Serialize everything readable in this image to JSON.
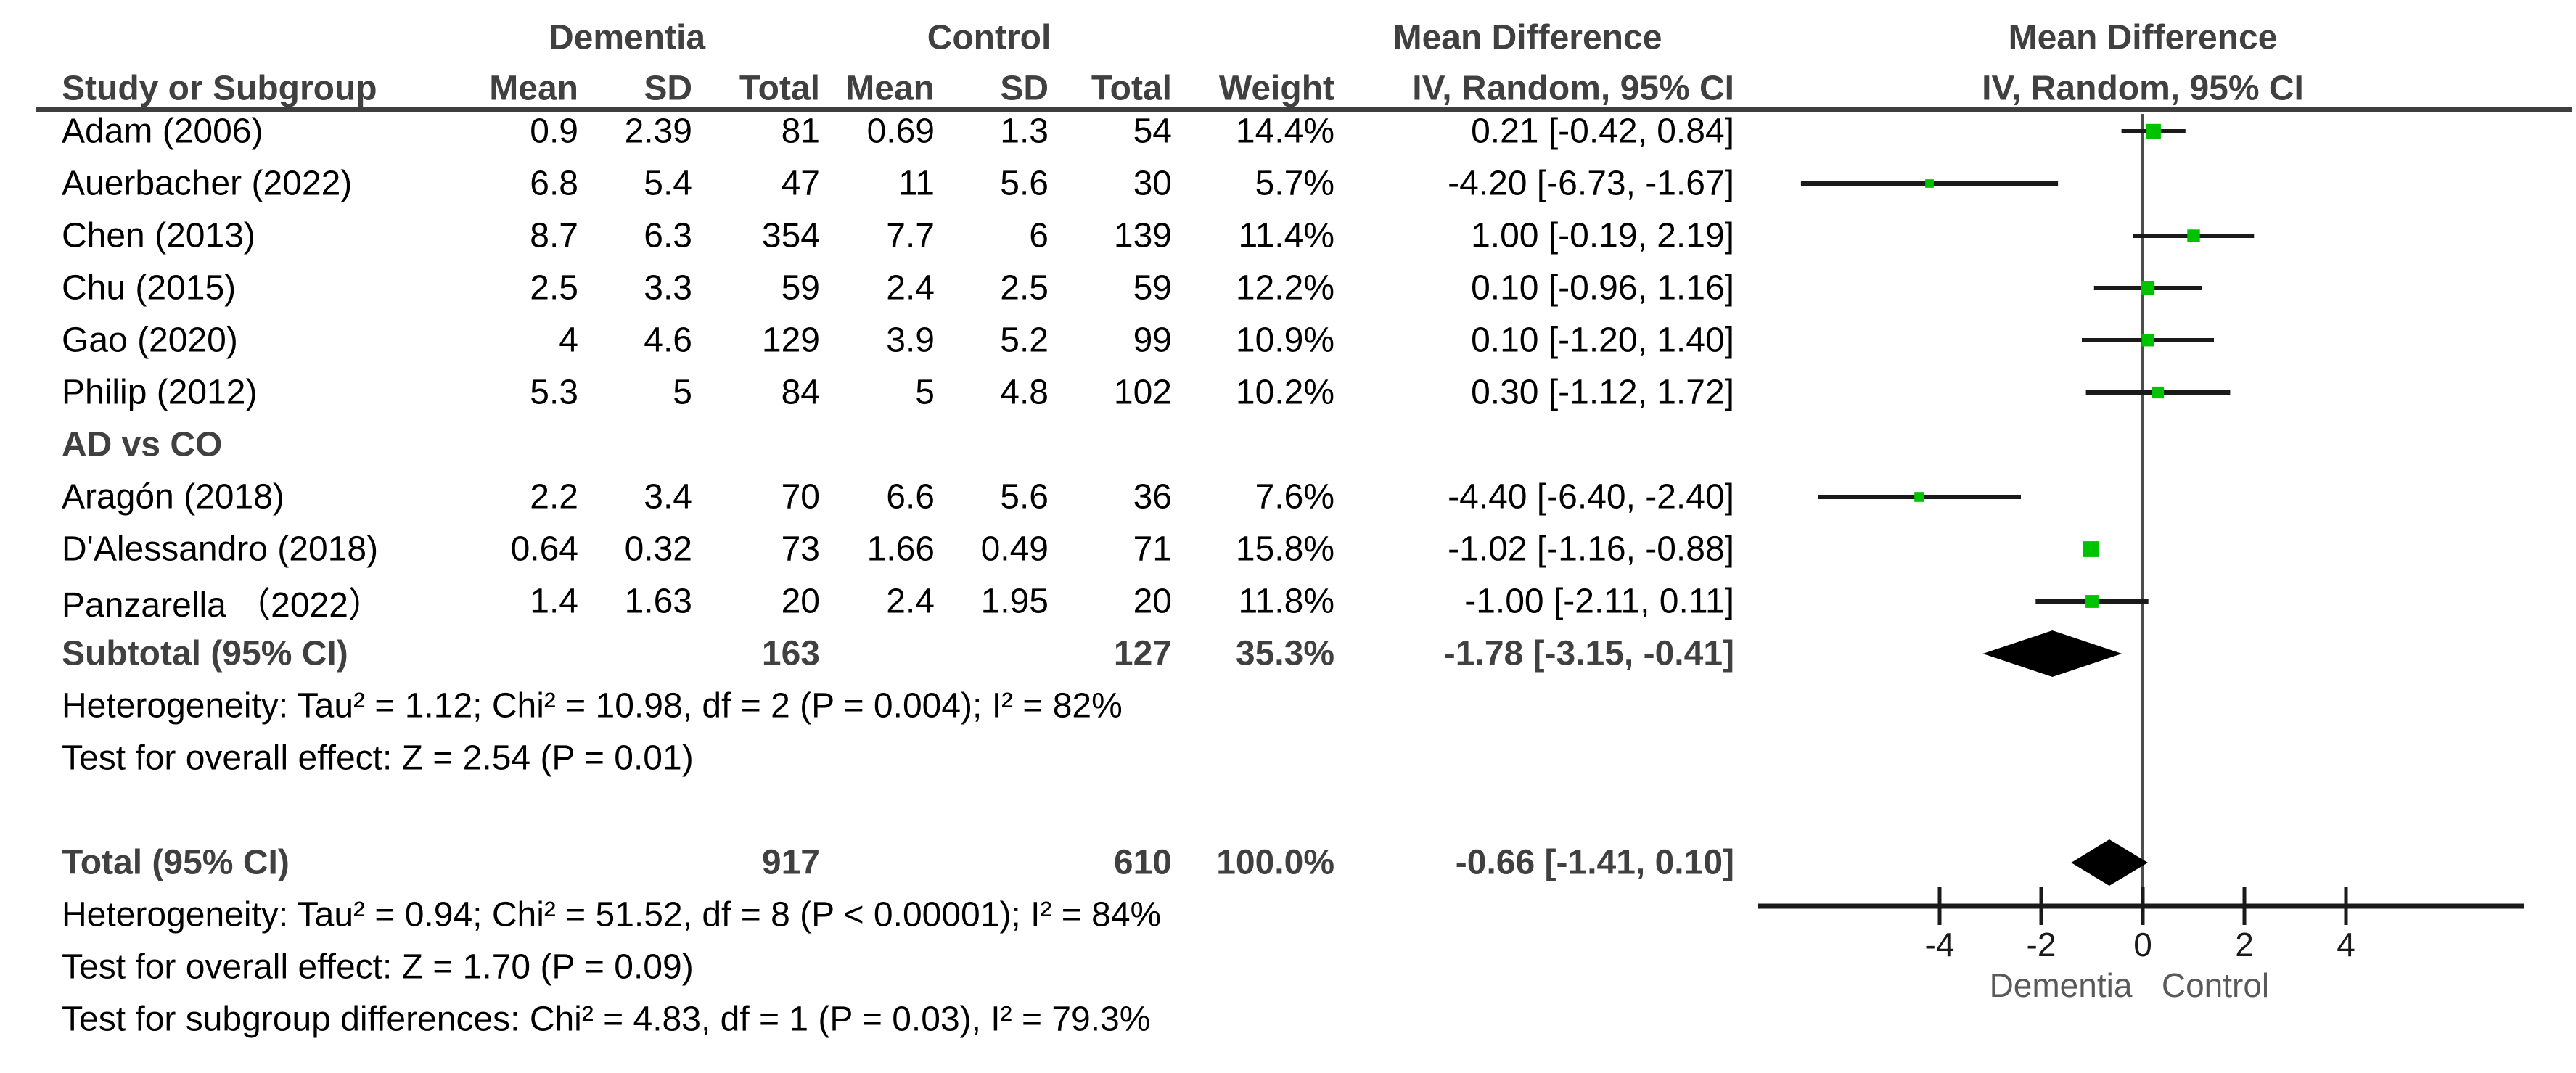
{
  "header": {
    "group_dementia": "Dementia",
    "group_control": "Control",
    "mean_difference_text_col": "Mean Difference",
    "mean_difference_plot_col": "Mean Difference",
    "study_or_subgroup": "Study or Subgroup",
    "mean": "Mean",
    "sd": "SD",
    "total": "Total",
    "weight": "Weight",
    "iv_random_text_col": "IV, Random, 95% CI",
    "iv_random_plot_col": "IV, Random, 95% CI"
  },
  "rows": [
    {
      "type": "study",
      "label": "Adam (2006)",
      "cells": [
        "0.9",
        "2.39",
        "81",
        "0.69",
        "1.3",
        "54",
        "14.4%",
        "0.21 [-0.42, 0.84]"
      ],
      "md": 0.21,
      "lo": -0.42,
      "hi": 0.84,
      "weight": 14.4
    },
    {
      "type": "study",
      "label": "Auerbacher (2022)",
      "cells": [
        "6.8",
        "5.4",
        "47",
        "11",
        "5.6",
        "30",
        "5.7%",
        "-4.20 [-6.73, -1.67]"
      ],
      "md": -4.2,
      "lo": -6.73,
      "hi": -1.67,
      "weight": 5.7
    },
    {
      "type": "study",
      "label": "Chen (2013)",
      "cells": [
        "8.7",
        "6.3",
        "354",
        "7.7",
        "6",
        "139",
        "11.4%",
        "1.00 [-0.19, 2.19]"
      ],
      "md": 1.0,
      "lo": -0.19,
      "hi": 2.19,
      "weight": 11.4
    },
    {
      "type": "study",
      "label": "Chu (2015)",
      "cells": [
        "2.5",
        "3.3",
        "59",
        "2.4",
        "2.5",
        "59",
        "12.2%",
        "0.10 [-0.96, 1.16]"
      ],
      "md": 0.1,
      "lo": -0.96,
      "hi": 1.16,
      "weight": 12.2
    },
    {
      "type": "study",
      "label": "Gao (2020)",
      "cells": [
        "4",
        "4.6",
        "129",
        "3.9",
        "5.2",
        "99",
        "10.9%",
        "0.10 [-1.20, 1.40]"
      ],
      "md": 0.1,
      "lo": -1.2,
      "hi": 1.4,
      "weight": 10.9
    },
    {
      "type": "study",
      "label": "Philip (2012)",
      "cells": [
        "5.3",
        "5",
        "84",
        "5",
        "4.8",
        "102",
        "10.2%",
        "0.30 [-1.12, 1.72]"
      ],
      "md": 0.3,
      "lo": -1.12,
      "hi": 1.72,
      "weight": 10.2
    },
    {
      "type": "label",
      "label": "AD vs CO"
    },
    {
      "type": "study",
      "label": "Aragón (2018)",
      "cells": [
        "2.2",
        "3.4",
        "70",
        "6.6",
        "5.6",
        "36",
        "7.6%",
        "-4.40 [-6.40, -2.40]"
      ],
      "md": -4.4,
      "lo": -6.4,
      "hi": -2.4,
      "weight": 7.6
    },
    {
      "type": "study",
      "label": "D'Alessandro (2018)",
      "cells": [
        "0.64",
        "0.32",
        "73",
        "1.66",
        "0.49",
        "71",
        "15.8%",
        "-1.02 [-1.16, -0.88]"
      ],
      "md": -1.02,
      "lo": -1.16,
      "hi": -0.88,
      "weight": 15.8
    },
    {
      "type": "study",
      "label": "Panzarella （2022）",
      "cells": [
        "1.4",
        "1.63",
        "20",
        "2.4",
        "1.95",
        "20",
        "11.8%",
        "-1.00 [-2.11, 0.11]"
      ],
      "md": -1.0,
      "lo": -2.11,
      "hi": 0.11,
      "weight": 11.8
    },
    {
      "type": "summary",
      "label": "Subtotal (95% CI)",
      "cells": [
        "",
        "",
        "163",
        "",
        "",
        "127",
        "35.3%",
        "-1.78 [-3.15, -0.41]"
      ],
      "md": -1.78,
      "lo": -3.15,
      "hi": -0.41
    },
    {
      "type": "note",
      "text": "Heterogeneity: Tau² = 1.12; Chi² = 10.98, df = 2 (P = 0.004); I² = 82%"
    },
    {
      "type": "note",
      "text": "Test for overall effect: Z = 2.54 (P = 0.01)"
    },
    {
      "type": "spacer"
    },
    {
      "type": "summary",
      "label": "Total (95% CI)",
      "cells": [
        "",
        "",
        "917",
        "",
        "",
        "610",
        "100.0%",
        "-0.66 [-1.41, 0.10]"
      ],
      "md": -0.66,
      "lo": -1.41,
      "hi": 0.1
    },
    {
      "type": "note",
      "text": "Heterogeneity: Tau² = 0.94; Chi² = 51.52, df = 8 (P < 0.00001); I² = 84%"
    },
    {
      "type": "note",
      "text": "Test for overall effect: Z = 1.70 (P = 0.09)"
    },
    {
      "type": "note",
      "text": "Test for subgroup differences: Chi² = 4.83, df = 1 (P = 0.03), I² = 79.3%"
    }
  ],
  "chart_data": {
    "type": "scatter",
    "variant": "forest-plot",
    "effect_measure": "Mean Difference, IV, Random, 95% CI",
    "studies": [
      {
        "label": "Adam (2006)",
        "dementia": {
          "mean": 0.9,
          "sd": 2.39,
          "total": 81
        },
        "control": {
          "mean": 0.69,
          "sd": 1.3,
          "total": 54
        },
        "weight_pct": 14.4,
        "md": 0.21,
        "ci": [
          -0.42,
          0.84
        ]
      },
      {
        "label": "Auerbacher (2022)",
        "dementia": {
          "mean": 6.8,
          "sd": 5.4,
          "total": 47
        },
        "control": {
          "mean": 11,
          "sd": 5.6,
          "total": 30
        },
        "weight_pct": 5.7,
        "md": -4.2,
        "ci": [
          -6.73,
          -1.67
        ]
      },
      {
        "label": "Chen (2013)",
        "dementia": {
          "mean": 8.7,
          "sd": 6.3,
          "total": 354
        },
        "control": {
          "mean": 7.7,
          "sd": 6,
          "total": 139
        },
        "weight_pct": 11.4,
        "md": 1.0,
        "ci": [
          -0.19,
          2.19
        ]
      },
      {
        "label": "Chu (2015)",
        "dementia": {
          "mean": 2.5,
          "sd": 3.3,
          "total": 59
        },
        "control": {
          "mean": 2.4,
          "sd": 2.5,
          "total": 59
        },
        "weight_pct": 12.2,
        "md": 0.1,
        "ci": [
          -0.96,
          1.16
        ]
      },
      {
        "label": "Gao (2020)",
        "dementia": {
          "mean": 4,
          "sd": 4.6,
          "total": 129
        },
        "control": {
          "mean": 3.9,
          "sd": 5.2,
          "total": 99
        },
        "weight_pct": 10.9,
        "md": 0.1,
        "ci": [
          -1.2,
          1.4
        ]
      },
      {
        "label": "Philip (2012)",
        "dementia": {
          "mean": 5.3,
          "sd": 5,
          "total": 84
        },
        "control": {
          "mean": 5,
          "sd": 4.8,
          "total": 102
        },
        "weight_pct": 10.2,
        "md": 0.3,
        "ci": [
          -1.12,
          1.72
        ]
      },
      {
        "label": "Aragón (2018)",
        "subgroup": "AD vs CO",
        "dementia": {
          "mean": 2.2,
          "sd": 3.4,
          "total": 70
        },
        "control": {
          "mean": 6.6,
          "sd": 5.6,
          "total": 36
        },
        "weight_pct": 7.6,
        "md": -4.4,
        "ci": [
          -6.4,
          -2.4
        ]
      },
      {
        "label": "D'Alessandro (2018)",
        "subgroup": "AD vs CO",
        "dementia": {
          "mean": 0.64,
          "sd": 0.32,
          "total": 73
        },
        "control": {
          "mean": 1.66,
          "sd": 0.49,
          "total": 71
        },
        "weight_pct": 15.8,
        "md": -1.02,
        "ci": [
          -1.16,
          -0.88
        ]
      },
      {
        "label": "Panzarella （2022）",
        "subgroup": "AD vs CO",
        "dementia": {
          "mean": 1.4,
          "sd": 1.63,
          "total": 20
        },
        "control": {
          "mean": 2.4,
          "sd": 1.95,
          "total": 20
        },
        "weight_pct": 11.8,
        "md": -1.0,
        "ci": [
          -2.11,
          0.11
        ]
      }
    ],
    "subtotal": {
      "label": "Subtotal (95% CI)",
      "dementia_total": 163,
      "control_total": 127,
      "weight_pct": 35.3,
      "md": -1.78,
      "ci": [
        -3.15,
        -0.41
      ]
    },
    "total": {
      "label": "Total (95% CI)",
      "dementia_total": 917,
      "control_total": 610,
      "weight_pct": 100.0,
      "md": -0.66,
      "ci": [
        -1.41,
        0.1
      ]
    },
    "heterogeneity_subgroup": "Tau² = 1.12; Chi² = 10.98, df = 2 (P = 0.004); I² = 82%",
    "overall_effect_subgroup": "Z = 2.54 (P = 0.01)",
    "heterogeneity_total": "Tau² = 0.94; Chi² = 51.52, df = 8 (P < 0.00001); I² = 84%",
    "overall_effect_total": "Z = 1.70 (P = 0.09)",
    "subgroup_differences": "Chi² = 4.83, df = 1 (P = 0.03), I² = 79.3%",
    "axis": {
      "ticks": [
        -4,
        -2,
        0,
        2,
        4
      ],
      "tick_labels": [
        "-4",
        "-2",
        "0",
        "2",
        "4"
      ],
      "xlim": [
        -7.6,
        7.6
      ],
      "left_label": "Dementia",
      "right_label": "Control"
    },
    "colors": {
      "marker_green": "#00c300",
      "diamond_black": "#000000",
      "line_black": "#1a1a1a",
      "rule_gray": "#3f3f3f",
      "axis_label_gray": "#595959"
    }
  }
}
